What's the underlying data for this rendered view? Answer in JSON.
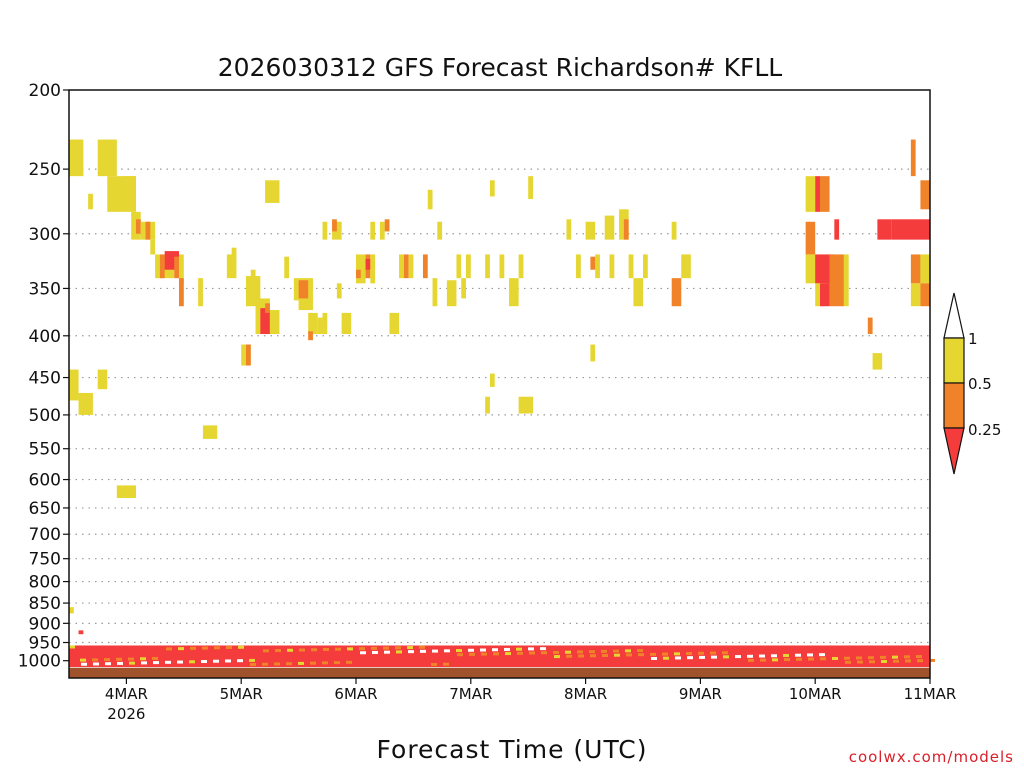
{
  "chart_data": {
    "type": "heatmap",
    "title": "2026030312 GFS Forecast Richardson# KFLL",
    "xlabel": "Forecast Time (UTC)",
    "ylabel": "",
    "y_scale": "log",
    "y_inverted": true,
    "ylim": [
      1050,
      200
    ],
    "xlim": [
      "2026-03-03T12",
      "2026-03-11T00"
    ],
    "y_ticks": [
      200,
      250,
      300,
      350,
      400,
      450,
      500,
      550,
      600,
      650,
      700,
      750,
      800,
      850,
      900,
      950,
      1000
    ],
    "x_ticks": [
      {
        "value": "2026-03-04T00",
        "label": "4MAR",
        "sublabel": "2026"
      },
      {
        "value": "2026-03-05T00",
        "label": "5MAR"
      },
      {
        "value": "2026-03-06T00",
        "label": "6MAR"
      },
      {
        "value": "2026-03-07T00",
        "label": "7MAR"
      },
      {
        "value": "2026-03-08T00",
        "label": "8MAR"
      },
      {
        "value": "2026-03-09T00",
        "label": "9MAR"
      },
      {
        "value": "2026-03-10T00",
        "label": "10MAR"
      },
      {
        "value": "2026-03-11T00",
        "label": "11MAR"
      }
    ],
    "grid": "dotted",
    "legend_placement": "right",
    "legend": {
      "labels": [
        "1",
        "0.5",
        "0.25"
      ],
      "bands": [
        {
          "range": "0.5-1",
          "color": "#e6d632"
        },
        {
          "range": "0.25-0.5",
          "color": "#f0822a"
        },
        {
          "range": "<0.25",
          "color": "#f53c3c"
        }
      ]
    },
    "colors": {
      "high": "#e6d632",
      "mid": "#f0822a",
      "low": "#f53c3c",
      "ground": "#a0522d"
    },
    "cells": [
      {
        "t0": "2026-03-03T12",
        "t1": "2026-03-03T15",
        "p0": 230,
        "p1": 255,
        "c": "high"
      },
      {
        "t0": "2026-03-03T18",
        "t1": "2026-03-03T22",
        "p0": 230,
        "p1": 255,
        "c": "high"
      },
      {
        "t0": "2026-03-03T16",
        "t1": "2026-03-03T17",
        "p0": 268,
        "p1": 280,
        "c": "high"
      },
      {
        "t0": "2026-03-03T20",
        "t1": "2026-03-04T02",
        "p0": 255,
        "p1": 282,
        "c": "high"
      },
      {
        "t0": "2026-03-03T23",
        "t1": "2026-03-04T02",
        "p0": 255,
        "p1": 268,
        "c": "high"
      },
      {
        "t0": "2026-03-04T01",
        "t1": "2026-03-04T03",
        "p0": 282,
        "p1": 305,
        "c": "high"
      },
      {
        "t0": "2026-03-04T02",
        "t1": "2026-03-04T03",
        "p0": 288,
        "p1": 300,
        "c": "mid"
      },
      {
        "t0": "2026-03-04T03",
        "t1": "2026-03-04T06",
        "p0": 290,
        "p1": 305,
        "c": "high"
      },
      {
        "t0": "2026-03-04T04",
        "t1": "2026-03-04T05",
        "p0": 290,
        "p1": 305,
        "c": "mid"
      },
      {
        "t0": "2026-03-04T05",
        "t1": "2026-03-04T06",
        "p0": 305,
        "p1": 318,
        "c": "high"
      },
      {
        "t0": "2026-03-04T06",
        "t1": "2026-03-04T10",
        "p0": 318,
        "p1": 340,
        "c": "high"
      },
      {
        "t0": "2026-03-04T07",
        "t1": "2026-03-04T08",
        "p0": 318,
        "p1": 340,
        "c": "mid"
      },
      {
        "t0": "2026-03-04T08",
        "t1": "2026-03-04T11",
        "p0": 315,
        "p1": 332,
        "c": "low"
      },
      {
        "t0": "2026-03-04T10",
        "t1": "2026-03-04T11",
        "p0": 320,
        "p1": 340,
        "c": "mid"
      },
      {
        "t0": "2026-03-04T11",
        "t1": "2026-03-04T12",
        "p0": 318,
        "p1": 345,
        "c": "high"
      },
      {
        "t0": "2026-03-04T11",
        "t1": "2026-03-04T12",
        "p0": 340,
        "p1": 368,
        "c": "mid"
      },
      {
        "t0": "2026-03-04T15",
        "t1": "2026-03-04T16",
        "p0": 340,
        "p1": 368,
        "c": "high"
      },
      {
        "t0": "2026-03-04T21",
        "t1": "2026-03-04T23",
        "p0": 318,
        "p1": 340,
        "c": "high"
      },
      {
        "t0": "2026-03-04T22",
        "t1": "2026-03-04T23",
        "p0": 312,
        "p1": 320,
        "c": "high"
      },
      {
        "t0": "2026-03-05T01",
        "t1": "2026-03-05T04",
        "p0": 338,
        "p1": 368,
        "c": "high"
      },
      {
        "t0": "2026-03-05T02",
        "t1": "2026-03-05T03",
        "p0": 332,
        "p1": 345,
        "c": "high"
      },
      {
        "t0": "2026-03-05T03",
        "t1": "2026-03-05T06",
        "p0": 360,
        "p1": 398,
        "c": "high"
      },
      {
        "t0": "2026-03-05T04",
        "t1": "2026-03-05T06",
        "p0": 370,
        "p1": 398,
        "c": "low"
      },
      {
        "t0": "2026-03-05T06",
        "t1": "2026-03-05T08",
        "p0": 372,
        "p1": 398,
        "c": "high"
      },
      {
        "t0": "2026-03-05T05",
        "t1": "2026-03-05T06",
        "p0": 365,
        "p1": 375,
        "c": "mid"
      },
      {
        "t0": "2026-03-05T00",
        "t1": "2026-03-05T02",
        "p0": 410,
        "p1": 435,
        "c": "high"
      },
      {
        "t0": "2026-03-05T01",
        "t1": "2026-03-05T02",
        "p0": 410,
        "p1": 435,
        "c": "mid"
      },
      {
        "t0": "2026-03-05T05",
        "t1": "2026-03-05T08",
        "p0": 258,
        "p1": 275,
        "c": "high"
      },
      {
        "t0": "2026-03-05T09",
        "t1": "2026-03-05T10",
        "p0": 320,
        "p1": 340,
        "c": "high"
      },
      {
        "t0": "2026-03-05T11",
        "t1": "2026-03-05T12",
        "p0": 340,
        "p1": 362,
        "c": "high"
      },
      {
        "t0": "2026-03-05T12",
        "t1": "2026-03-05T15",
        "p0": 340,
        "p1": 372,
        "c": "high"
      },
      {
        "t0": "2026-03-05T12",
        "t1": "2026-03-05T14",
        "p0": 342,
        "p1": 360,
        "c": "mid"
      },
      {
        "t0": "2026-03-05T14",
        "t1": "2026-03-05T16",
        "p0": 375,
        "p1": 398,
        "c": "high"
      },
      {
        "t0": "2026-03-05T16",
        "t1": "2026-03-05T17",
        "p0": 380,
        "p1": 398,
        "c": "high"
      },
      {
        "t0": "2026-03-05T14",
        "t1": "2026-03-05T15",
        "p0": 395,
        "p1": 405,
        "c": "mid"
      },
      {
        "t0": "2026-03-05T17",
        "t1": "2026-03-05T18",
        "p0": 375,
        "p1": 398,
        "c": "high"
      },
      {
        "t0": "2026-03-05T20",
        "t1": "2026-03-05T21",
        "p0": 345,
        "p1": 360,
        "c": "high"
      },
      {
        "t0": "2026-03-05T17",
        "t1": "2026-03-05T18",
        "p0": 290,
        "p1": 305,
        "c": "high"
      },
      {
        "t0": "2026-03-05T19",
        "t1": "2026-03-05T21",
        "p0": 290,
        "p1": 305,
        "c": "high"
      },
      {
        "t0": "2026-03-05T19",
        "t1": "2026-03-05T20",
        "p0": 288,
        "p1": 298,
        "c": "mid"
      },
      {
        "t0": "2026-03-05T21",
        "t1": "2026-03-05T23",
        "p0": 375,
        "p1": 398,
        "c": "high"
      },
      {
        "t0": "2026-03-06T00",
        "t1": "2026-03-06T02",
        "p0": 318,
        "p1": 345,
        "c": "high"
      },
      {
        "t0": "2026-03-06T00",
        "t1": "2026-03-06T01",
        "p0": 332,
        "p1": 340,
        "c": "mid"
      },
      {
        "t0": "2026-03-06T02",
        "t1": "2026-03-06T03",
        "p0": 318,
        "p1": 340,
        "c": "mid"
      },
      {
        "t0": "2026-03-06T02",
        "t1": "2026-03-06T03",
        "p0": 322,
        "p1": 332,
        "c": "low"
      },
      {
        "t0": "2026-03-06T03",
        "t1": "2026-03-06T04",
        "p0": 318,
        "p1": 345,
        "c": "high"
      },
      {
        "t0": "2026-03-06T03",
        "t1": "2026-03-06T04",
        "p0": 290,
        "p1": 305,
        "c": "high"
      },
      {
        "t0": "2026-03-06T05",
        "t1": "2026-03-06T06",
        "p0": 290,
        "p1": 305,
        "c": "high"
      },
      {
        "t0": "2026-03-06T06",
        "t1": "2026-03-06T07",
        "p0": 288,
        "p1": 298,
        "c": "mid"
      },
      {
        "t0": "2026-03-06T07",
        "t1": "2026-03-06T09",
        "p0": 375,
        "p1": 398,
        "c": "high"
      },
      {
        "t0": "2026-03-06T09",
        "t1": "2026-03-06T10",
        "p0": 318,
        "p1": 340,
        "c": "high"
      },
      {
        "t0": "2026-03-06T10",
        "t1": "2026-03-06T11",
        "p0": 318,
        "p1": 340,
        "c": "mid"
      },
      {
        "t0": "2026-03-06T11",
        "t1": "2026-03-06T12",
        "p0": 318,
        "p1": 340,
        "c": "high"
      },
      {
        "t0": "2026-03-06T14",
        "t1": "2026-03-06T15",
        "p0": 318,
        "p1": 340,
        "c": "mid"
      },
      {
        "t0": "2026-03-06T16",
        "t1": "2026-03-06T17",
        "p0": 340,
        "p1": 368,
        "c": "high"
      },
      {
        "t0": "2026-03-06T15",
        "t1": "2026-03-06T16",
        "p0": 265,
        "p1": 280,
        "c": "high"
      },
      {
        "t0": "2026-03-06T17",
        "t1": "2026-03-06T18",
        "p0": 290,
        "p1": 305,
        "c": "high"
      },
      {
        "t0": "2026-03-06T19",
        "t1": "2026-03-06T21",
        "p0": 342,
        "p1": 368,
        "c": "high"
      },
      {
        "t0": "2026-03-06T21",
        "t1": "2026-03-06T22",
        "p0": 318,
        "p1": 340,
        "c": "high"
      },
      {
        "t0": "2026-03-06T22",
        "t1": "2026-03-06T23",
        "p0": 340,
        "p1": 360,
        "c": "high"
      },
      {
        "t0": "2026-03-06T23",
        "t1": "2026-03-07T00",
        "p0": 318,
        "p1": 340,
        "c": "high"
      },
      {
        "t0": "2026-03-07T03",
        "t1": "2026-03-07T04",
        "p0": 318,
        "p1": 340,
        "c": "high"
      },
      {
        "t0": "2026-03-07T04",
        "t1": "2026-03-07T05",
        "p0": 258,
        "p1": 270,
        "c": "high"
      },
      {
        "t0": "2026-03-07T06",
        "t1": "2026-03-07T07",
        "p0": 318,
        "p1": 340,
        "c": "high"
      },
      {
        "t0": "2026-03-07T08",
        "t1": "2026-03-07T10",
        "p0": 340,
        "p1": 368,
        "c": "high"
      },
      {
        "t0": "2026-03-07T10",
        "t1": "2026-03-07T11",
        "p0": 318,
        "p1": 340,
        "c": "high"
      },
      {
        "t0": "2026-03-07T04",
        "t1": "2026-03-07T05",
        "p0": 445,
        "p1": 462,
        "c": "high"
      },
      {
        "t0": "2026-03-07T03",
        "t1": "2026-03-07T04",
        "p0": 475,
        "p1": 498,
        "c": "high"
      },
      {
        "t0": "2026-03-07T10",
        "t1": "2026-03-07T13",
        "p0": 475,
        "p1": 498,
        "c": "high"
      },
      {
        "t0": "2026-03-07T12",
        "t1": "2026-03-07T13",
        "p0": 255,
        "p1": 272,
        "c": "high"
      },
      {
        "t0": "2026-03-07T20",
        "t1": "2026-03-07T21",
        "p0": 288,
        "p1": 305,
        "c": "high"
      },
      {
        "t0": "2026-03-07T22",
        "t1": "2026-03-07T23",
        "p0": 318,
        "p1": 340,
        "c": "high"
      },
      {
        "t0": "2026-03-08T00",
        "t1": "2026-03-08T02",
        "p0": 290,
        "p1": 305,
        "c": "high"
      },
      {
        "t0": "2026-03-08T02",
        "t1": "2026-03-08T03",
        "p0": 318,
        "p1": 340,
        "c": "high"
      },
      {
        "t0": "2026-03-08T01",
        "t1": "2026-03-08T02",
        "p0": 320,
        "p1": 332,
        "c": "mid"
      },
      {
        "t0": "2026-03-08T04",
        "t1": "2026-03-08T06",
        "p0": 285,
        "p1": 305,
        "c": "high"
      },
      {
        "t0": "2026-03-08T05",
        "t1": "2026-03-08T06",
        "p0": 318,
        "p1": 340,
        "c": "high"
      },
      {
        "t0": "2026-03-08T07",
        "t1": "2026-03-08T09",
        "p0": 280,
        "p1": 305,
        "c": "high"
      },
      {
        "t0": "2026-03-08T08",
        "t1": "2026-03-08T09",
        "p0": 288,
        "p1": 305,
        "c": "mid"
      },
      {
        "t0": "2026-03-08T09",
        "t1": "2026-03-08T10",
        "p0": 318,
        "p1": 340,
        "c": "high"
      },
      {
        "t0": "2026-03-08T10",
        "t1": "2026-03-08T12",
        "p0": 340,
        "p1": 368,
        "c": "high"
      },
      {
        "t0": "2026-03-08T12",
        "t1": "2026-03-08T13",
        "p0": 318,
        "p1": 340,
        "c": "high"
      },
      {
        "t0": "2026-03-08T01",
        "t1": "2026-03-08T02",
        "p0": 410,
        "p1": 430,
        "c": "high"
      },
      {
        "t0": "2026-03-08T18",
        "t1": "2026-03-08T19",
        "p0": 290,
        "p1": 305,
        "c": "high"
      },
      {
        "t0": "2026-03-08T20",
        "t1": "2026-03-08T22",
        "p0": 318,
        "p1": 340,
        "c": "high"
      },
      {
        "t0": "2026-03-08T18",
        "t1": "2026-03-08T20",
        "p0": 340,
        "p1": 368,
        "c": "mid"
      },
      {
        "t0": "2026-03-09T22",
        "t1": "2026-03-10T00",
        "p0": 255,
        "p1": 282,
        "c": "high"
      },
      {
        "t0": "2026-03-10T00",
        "t1": "2026-03-10T01",
        "p0": 255,
        "p1": 282,
        "c": "low"
      },
      {
        "t0": "2026-03-10T01",
        "t1": "2026-03-10T03",
        "p0": 255,
        "p1": 282,
        "c": "mid"
      },
      {
        "t0": "2026-03-09T22",
        "t1": "2026-03-10T00",
        "p0": 290,
        "p1": 318,
        "c": "mid"
      },
      {
        "t0": "2026-03-09T22",
        "t1": "2026-03-10T04",
        "p0": 318,
        "p1": 345,
        "c": "high"
      },
      {
        "t0": "2026-03-10T00",
        "t1": "2026-03-10T04",
        "p0": 318,
        "p1": 345,
        "c": "low"
      },
      {
        "t0": "2026-03-10T00",
        "t1": "2026-03-10T02",
        "p0": 345,
        "p1": 368,
        "c": "high"
      },
      {
        "t0": "2026-03-10T01",
        "t1": "2026-03-10T03",
        "p0": 345,
        "p1": 368,
        "c": "low"
      },
      {
        "t0": "2026-03-10T03",
        "t1": "2026-03-10T06",
        "p0": 318,
        "p1": 368,
        "c": "mid"
      },
      {
        "t0": "2026-03-10T06",
        "t1": "2026-03-10T07",
        "p0": 318,
        "p1": 368,
        "c": "high"
      },
      {
        "t0": "2026-03-10T04",
        "t1": "2026-03-10T05",
        "p0": 288,
        "p1": 305,
        "c": "low"
      },
      {
        "t0": "2026-03-10T11",
        "t1": "2026-03-10T12",
        "p0": 380,
        "p1": 398,
        "c": "mid"
      },
      {
        "t0": "2026-03-10T12",
        "t1": "2026-03-10T14",
        "p0": 420,
        "p1": 440,
        "c": "high"
      },
      {
        "t0": "2026-03-10T13",
        "t1": "2026-03-10T16",
        "p0": 288,
        "p1": 305,
        "c": "low"
      },
      {
        "t0": "2026-03-10T16",
        "t1": "2026-03-11T00",
        "p0": 288,
        "p1": 305,
        "c": "low"
      },
      {
        "t0": "2026-03-10T20",
        "t1": "2026-03-10T21",
        "p0": 230,
        "p1": 255,
        "c": "mid"
      },
      {
        "t0": "2026-03-10T20",
        "t1": "2026-03-10T22",
        "p0": 318,
        "p1": 345,
        "c": "mid"
      },
      {
        "t0": "2026-03-10T20",
        "t1": "2026-03-10T22",
        "p0": 345,
        "p1": 368,
        "c": "high"
      },
      {
        "t0": "2026-03-10T22",
        "t1": "2026-03-11T00",
        "p0": 318,
        "p1": 345,
        "c": "high"
      },
      {
        "t0": "2026-03-10T22",
        "t1": "2026-03-11T00",
        "p0": 345,
        "p1": 368,
        "c": "mid"
      },
      {
        "t0": "2026-03-10T22",
        "t1": "2026-03-11T00",
        "p0": 258,
        "p1": 280,
        "c": "mid"
      },
      {
        "t0": "2026-03-03T12",
        "t1": "2026-03-03T14",
        "p0": 440,
        "p1": 480,
        "c": "high"
      },
      {
        "t0": "2026-03-03T14",
        "t1": "2026-03-03T17",
        "p0": 470,
        "p1": 500,
        "c": "high"
      },
      {
        "t0": "2026-03-03T18",
        "t1": "2026-03-03T20",
        "p0": 440,
        "p1": 465,
        "c": "high"
      },
      {
        "t0": "2026-03-03T22",
        "t1": "2026-03-04T02",
        "p0": 610,
        "p1": 632,
        "c": "high"
      },
      {
        "t0": "2026-03-04T16",
        "t1": "2026-03-04T19",
        "p0": 515,
        "p1": 535,
        "c": "high"
      },
      {
        "t0": "2026-03-03T12",
        "t1": "2026-03-03T13",
        "p0": 860,
        "p1": 875,
        "c": "high"
      },
      {
        "t0": "2026-03-03T14",
        "t1": "2026-03-03T15",
        "p0": 918,
        "p1": 928,
        "c": "low"
      }
    ],
    "boundary_layer": {
      "p_top": 958,
      "p_bottom": 1018,
      "c": "low"
    },
    "ground_layer": {
      "p_top": 1020,
      "p_bottom": 1050,
      "c": "ground"
    }
  },
  "credit": "coolwx.com/models"
}
